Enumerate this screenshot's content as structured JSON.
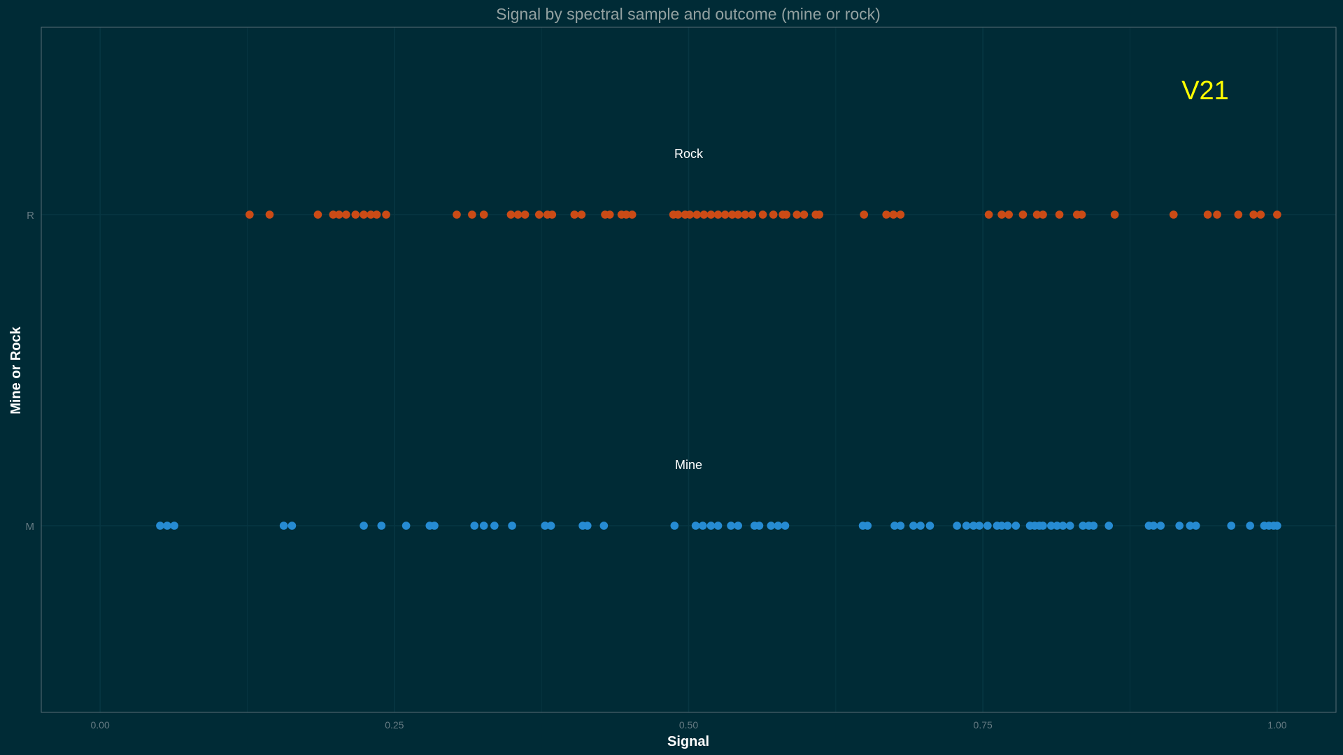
{
  "colors": {
    "background": "#002b36",
    "panel_border": "#586e75",
    "grid": "#073642",
    "title": "#93a1a1",
    "tick": "#657b83",
    "axis_title": "#ffffff",
    "annotation": "#ffffff",
    "panel_label": "#ffff00"
  },
  "chart_data": {
    "type": "scatter",
    "title": "Signal by spectral sample and outcome (mine or rock)",
    "xlabel": "Signal",
    "ylabel": "Mine or Rock",
    "xlim": [
      -0.05,
      1.05
    ],
    "x_ticks": [
      "0.00",
      "0.25",
      "0.50",
      "0.75",
      "1.00"
    ],
    "x_tick_values": [
      0,
      0.25,
      0.5,
      0.75,
      1.0
    ],
    "categories": [
      "M",
      "R"
    ],
    "panel_label": "V21",
    "annotations": [
      {
        "text": "Rock",
        "x": 0.5,
        "category": "R"
      },
      {
        "text": "Mine",
        "x": 0.5,
        "category": "M"
      }
    ],
    "grid": true,
    "legend": "none",
    "series": [
      {
        "category": "R",
        "color": "#cb4b16",
        "values": [
          0.127,
          0.144,
          0.185,
          0.198,
          0.203,
          0.209,
          0.217,
          0.224,
          0.23,
          0.235,
          0.243,
          0.303,
          0.316,
          0.326,
          0.349,
          0.355,
          0.361,
          0.373,
          0.38,
          0.384,
          0.403,
          0.409,
          0.429,
          0.433,
          0.443,
          0.447,
          0.452,
          0.487,
          0.491,
          0.497,
          0.501,
          0.507,
          0.513,
          0.519,
          0.525,
          0.531,
          0.537,
          0.542,
          0.548,
          0.554,
          0.563,
          0.572,
          0.58,
          0.583,
          0.592,
          0.598,
          0.608,
          0.611,
          0.649,
          0.668,
          0.674,
          0.68,
          0.755,
          0.766,
          0.772,
          0.784,
          0.796,
          0.801,
          0.815,
          0.83,
          0.834,
          0.862,
          0.912,
          0.941,
          0.949,
          0.967,
          0.98,
          0.986,
          1.0
        ]
      },
      {
        "category": "M",
        "color": "#268bd2",
        "values": [
          0.051,
          0.057,
          0.063,
          0.156,
          0.163,
          0.224,
          0.239,
          0.26,
          0.28,
          0.284,
          0.318,
          0.326,
          0.335,
          0.35,
          0.378,
          0.383,
          0.41,
          0.414,
          0.428,
          0.488,
          0.506,
          0.512,
          0.519,
          0.525,
          0.536,
          0.542,
          0.556,
          0.56,
          0.57,
          0.576,
          0.582,
          0.648,
          0.652,
          0.675,
          0.68,
          0.691,
          0.697,
          0.705,
          0.728,
          0.736,
          0.742,
          0.747,
          0.754,
          0.762,
          0.766,
          0.771,
          0.778,
          0.79,
          0.794,
          0.798,
          0.801,
          0.808,
          0.813,
          0.818,
          0.824,
          0.835,
          0.84,
          0.844,
          0.857,
          0.891,
          0.895,
          0.901,
          0.917,
          0.926,
          0.931,
          0.961,
          0.977,
          0.989,
          0.993,
          0.997,
          1.0
        ]
      }
    ]
  }
}
